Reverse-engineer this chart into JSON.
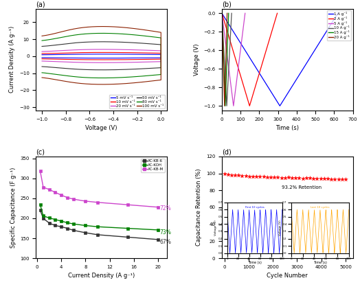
{
  "panel_a": {
    "title": "(a)",
    "xlabel": "Voltage (V)",
    "ylabel": "Current Density (A g⁻¹)",
    "xlim": [
      -1.05,
      0.05
    ],
    "ylim": [
      -32,
      28
    ],
    "yticks": [
      -30,
      -20,
      -10,
      0,
      10,
      20
    ],
    "xticks": [
      -1.0,
      -0.8,
      -0.6,
      -0.4,
      -0.2,
      0.0
    ],
    "curves": [
      {
        "label": "5 mV s⁻¹",
        "color": "blue",
        "scale": 1.2
      },
      {
        "label": "10 mV s⁻¹",
        "color": "red",
        "scale": 2.2
      },
      {
        "label": "20 mV s⁻¹",
        "color": "#CC44CC",
        "scale": 4.0
      },
      {
        "label": "50 mV s⁻¹",
        "color": "#333333",
        "scale": 8.5
      },
      {
        "label": "80 mV s⁻¹",
        "color": "green",
        "scale": 13.5
      },
      {
        "label": "100 mV s⁻¹",
        "color": "#8B2000",
        "scale": 17.5
      }
    ]
  },
  "panel_b": {
    "title": "(b)",
    "xlabel": "Time (s)",
    "ylabel": "Voltage (V)",
    "xlim": [
      0,
      700
    ],
    "ylim": [
      -1.05,
      0.05
    ],
    "yticks": [
      0.0,
      -0.2,
      -0.4,
      -0.6,
      -0.8,
      -1.0
    ],
    "xticks": [
      0,
      100,
      200,
      300,
      400,
      500,
      600,
      700
    ],
    "curves": [
      {
        "label": "1 A g⁻¹",
        "color": "blue",
        "half_time": 310
      },
      {
        "label": "2 A g⁻¹",
        "color": "red",
        "half_time": 148
      },
      {
        "label": "5 A g⁻¹",
        "color": "#CC44CC",
        "half_time": 62
      },
      {
        "label": "10 A g⁻¹",
        "color": "#555555",
        "half_time": 26
      },
      {
        "label": "15 A g⁻¹",
        "color": "green",
        "half_time": 18
      },
      {
        "label": "20 A g⁻¹",
        "color": "#8B2000",
        "half_time": 14
      }
    ]
  },
  "panel_c": {
    "title": "(c)",
    "xlabel": "Current Density (A g⁻¹)",
    "ylabel": "Specific Capacitance (F g⁻¹)",
    "xlim": [
      -0.2,
      21.5
    ],
    "ylim": [
      100,
      355
    ],
    "yticks": [
      100,
      150,
      200,
      250,
      300,
      350
    ],
    "xticks": [
      0,
      4,
      8,
      12,
      16,
      20
    ],
    "series": [
      {
        "label": "AC-KB-6",
        "color": "#333333",
        "marker": "s",
        "x": [
          0.5,
          1,
          2,
          3,
          4,
          5,
          6,
          8,
          10,
          15,
          20
        ],
        "y": [
          220,
          200,
          188,
          182,
          179,
          175,
          170,
          164,
          159,
          153,
          147
        ],
        "pct_label": "67%",
        "pct_x": 20.3,
        "pct_y": 140
      },
      {
        "label": "AC-KOH",
        "color": "green",
        "marker": "s",
        "x": [
          0.5,
          1,
          2,
          3,
          4,
          5,
          6,
          8,
          10,
          15,
          20
        ],
        "y": [
          234,
          206,
          201,
          197,
          193,
          189,
          186,
          182,
          179,
          175,
          171
        ],
        "pct_label": "73%",
        "pct_x": 20.3,
        "pct_y": 165
      },
      {
        "label": "AC-KB-M",
        "color": "#CC44CC",
        "marker": "s",
        "x": [
          0.5,
          1,
          2,
          3,
          4,
          5,
          6,
          8,
          10,
          15,
          20
        ],
        "y": [
          318,
          278,
          272,
          265,
          258,
          252,
          248,
          243,
          240,
          234,
          228
        ],
        "pct_label": "72%",
        "pct_x": 20.3,
        "pct_y": 225
      }
    ]
  },
  "panel_d": {
    "title": "(d)",
    "xlabel": "Cycle Number",
    "ylabel": "Capacitance Retention (%)",
    "xlim": [
      -100,
      5300
    ],
    "ylim": [
      0,
      120
    ],
    "yticks": [
      0,
      20,
      40,
      60,
      80,
      100,
      120
    ],
    "xticks": [
      0,
      1000,
      2000,
      3000,
      4000,
      5000
    ],
    "retention_label": "93.2% Retention",
    "star_color": "red",
    "n_stars": 35,
    "start_val": 100.0,
    "end_val": 93.2,
    "inset1_color": "blue",
    "inset2_color": "orange"
  }
}
